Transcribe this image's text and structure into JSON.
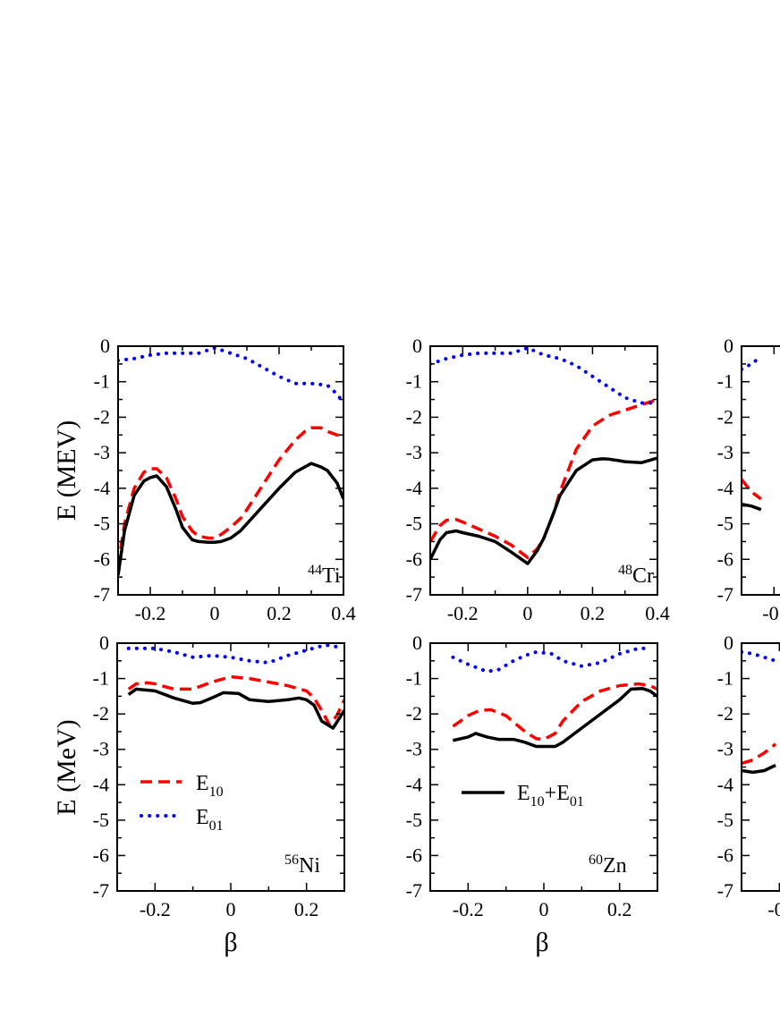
{
  "chart_data": [
    {
      "type": "line",
      "nucleus": {
        "mass": "44",
        "symbol": "Ti"
      },
      "ylabel": "E (MEV)",
      "xlabel": "",
      "xlim": [
        -0.3,
        0.4
      ],
      "ylim": [
        -7,
        0
      ],
      "xticks": [
        "-0.2",
        "0",
        "0.2",
        "0.4"
      ],
      "yticks": [
        "0",
        "-1",
        "-2",
        "-3",
        "-4",
        "-5",
        "-6",
        "-7"
      ],
      "series": [
        {
          "name": "E10",
          "color": "#ff0000",
          "style": "dashed",
          "x": [
            -0.3,
            -0.28,
            -0.25,
            -0.22,
            -0.2,
            -0.18,
            -0.15,
            -0.12,
            -0.1,
            -0.07,
            -0.05,
            -0.02,
            0,
            0.02,
            0.05,
            0.08,
            0.1,
            0.15,
            0.2,
            0.25,
            0.28,
            0.3,
            0.33,
            0.35,
            0.38,
            0.4
          ],
          "y": [
            -6.2,
            -5.0,
            -4.0,
            -3.55,
            -3.45,
            -3.45,
            -3.7,
            -4.3,
            -4.8,
            -5.2,
            -5.35,
            -5.4,
            -5.4,
            -5.3,
            -5.1,
            -4.85,
            -4.6,
            -3.9,
            -3.2,
            -2.65,
            -2.4,
            -2.3,
            -2.3,
            -2.4,
            -2.5,
            -2.55
          ]
        },
        {
          "name": "E01",
          "color": "#0000ff",
          "style": "dotted",
          "x": [
            -0.3,
            -0.25,
            -0.2,
            -0.15,
            -0.1,
            -0.05,
            0,
            0.05,
            0.1,
            0.15,
            0.2,
            0.25,
            0.3,
            0.35,
            0.38,
            0.4
          ],
          "y": [
            -0.4,
            -0.35,
            -0.25,
            -0.2,
            -0.2,
            -0.2,
            -0.05,
            -0.2,
            -0.35,
            -0.6,
            -0.85,
            -1.05,
            -1.05,
            -1.1,
            -1.35,
            -1.6
          ]
        },
        {
          "name": "E10+E01",
          "color": "#000000",
          "style": "solid",
          "x": [
            -0.3,
            -0.28,
            -0.25,
            -0.22,
            -0.2,
            -0.18,
            -0.15,
            -0.12,
            -0.1,
            -0.07,
            -0.05,
            -0.02,
            0,
            0.02,
            0.05,
            0.08,
            0.1,
            0.15,
            0.2,
            0.25,
            0.28,
            0.3,
            0.33,
            0.35,
            0.38,
            0.4
          ],
          "y": [
            -6.45,
            -5.2,
            -4.2,
            -3.8,
            -3.7,
            -3.65,
            -3.95,
            -4.6,
            -5.1,
            -5.45,
            -5.5,
            -5.52,
            -5.52,
            -5.5,
            -5.4,
            -5.2,
            -5.0,
            -4.5,
            -4.0,
            -3.55,
            -3.4,
            -3.3,
            -3.4,
            -3.5,
            -3.85,
            -4.3
          ]
        }
      ]
    },
    {
      "type": "line",
      "nucleus": {
        "mass": "48",
        "symbol": "Cr"
      },
      "ylabel": "",
      "xlabel": "",
      "xlim": [
        -0.3,
        0.4
      ],
      "ylim": [
        -7,
        0
      ],
      "xticks": [
        "-0.2",
        "0",
        "0.2",
        "0.4"
      ],
      "yticks": [
        "0",
        "-1",
        "-2",
        "-3",
        "-4",
        "-5",
        "-6",
        "-7"
      ],
      "series": [
        {
          "name": "E10",
          "color": "#ff0000",
          "style": "dashed",
          "x": [
            -0.3,
            -0.27,
            -0.25,
            -0.22,
            -0.2,
            -0.15,
            -0.1,
            -0.05,
            0,
            0.03,
            0.05,
            0.08,
            0.1,
            0.15,
            0.2,
            0.25,
            0.3,
            0.35,
            0.4
          ],
          "y": [
            -5.5,
            -5.05,
            -4.9,
            -4.88,
            -4.95,
            -5.15,
            -5.35,
            -5.6,
            -5.95,
            -5.7,
            -5.4,
            -4.7,
            -4.1,
            -2.9,
            -2.25,
            -1.95,
            -1.8,
            -1.65,
            -1.5
          ]
        },
        {
          "name": "E01",
          "color": "#0000ff",
          "style": "dotted",
          "x": [
            -0.3,
            -0.25,
            -0.2,
            -0.15,
            -0.1,
            -0.05,
            0,
            0.05,
            0.1,
            0.15,
            0.2,
            0.25,
            0.3,
            0.35,
            0.4
          ],
          "y": [
            -0.5,
            -0.35,
            -0.25,
            -0.2,
            -0.2,
            -0.2,
            -0.05,
            -0.25,
            -0.35,
            -0.55,
            -0.85,
            -1.15,
            -1.45,
            -1.6,
            -1.6
          ]
        },
        {
          "name": "E10+E01",
          "color": "#000000",
          "style": "solid",
          "x": [
            -0.3,
            -0.27,
            -0.25,
            -0.22,
            -0.2,
            -0.15,
            -0.1,
            -0.05,
            0,
            0.03,
            0.05,
            0.08,
            0.1,
            0.15,
            0.2,
            0.23,
            0.25,
            0.28,
            0.3,
            0.35,
            0.4
          ],
          "y": [
            -6.0,
            -5.45,
            -5.25,
            -5.2,
            -5.25,
            -5.35,
            -5.5,
            -5.8,
            -6.12,
            -5.75,
            -5.4,
            -4.7,
            -4.2,
            -3.5,
            -3.2,
            -3.17,
            -3.18,
            -3.22,
            -3.25,
            -3.28,
            -3.15
          ]
        }
      ]
    },
    {
      "type": "line",
      "nucleus": {
        "mass": "56",
        "symbol": "Ni"
      },
      "ylabel": "E (MeV)",
      "xlabel": "β",
      "xlim": [
        -0.3,
        0.3
      ],
      "ylim": [
        -7,
        0
      ],
      "xticks": [
        "-0.2",
        "0",
        "0.2"
      ],
      "yticks": [
        "0",
        "-1",
        "-2",
        "-3",
        "-4",
        "-5",
        "-6",
        "-7"
      ],
      "series": [
        {
          "name": "E10",
          "color": "#ff0000",
          "style": "dashed",
          "x": [
            -0.27,
            -0.25,
            -0.22,
            -0.2,
            -0.15,
            -0.1,
            -0.05,
            0,
            0.05,
            0.1,
            0.15,
            0.2,
            0.22,
            0.24,
            0.26,
            0.28,
            0.3
          ],
          "y": [
            -1.3,
            -1.15,
            -1.12,
            -1.15,
            -1.3,
            -1.3,
            -1.1,
            -0.95,
            -1.0,
            -1.1,
            -1.2,
            -1.35,
            -1.55,
            -1.9,
            -2.3,
            -2.05,
            -1.6
          ]
        },
        {
          "name": "E01",
          "color": "#0000ff",
          "style": "dotted",
          "x": [
            -0.27,
            -0.2,
            -0.15,
            -0.1,
            -0.05,
            0,
            0.05,
            0.1,
            0.15,
            0.2,
            0.25,
            0.28
          ],
          "y": [
            -0.15,
            -0.15,
            -0.25,
            -0.4,
            -0.35,
            -0.4,
            -0.5,
            -0.55,
            -0.35,
            -0.2,
            -0.05,
            -0.1
          ]
        },
        {
          "name": "E10+E01",
          "color": "#000000",
          "style": "solid",
          "x": [
            -0.27,
            -0.25,
            -0.2,
            -0.15,
            -0.1,
            -0.08,
            -0.05,
            -0.02,
            0.02,
            0.05,
            0.1,
            0.15,
            0.18,
            0.2,
            0.22,
            0.24,
            0.27,
            0.3
          ],
          "y": [
            -1.45,
            -1.3,
            -1.35,
            -1.55,
            -1.7,
            -1.68,
            -1.55,
            -1.4,
            -1.42,
            -1.6,
            -1.65,
            -1.6,
            -1.55,
            -1.6,
            -1.75,
            -2.2,
            -2.4,
            -1.9
          ]
        }
      ]
    },
    {
      "type": "line",
      "nucleus": {
        "mass": "60",
        "symbol": "Zn"
      },
      "ylabel": "",
      "xlabel": "β",
      "xlim": [
        -0.3,
        0.3
      ],
      "ylim": [
        -7,
        0
      ],
      "xticks": [
        "-0.2",
        "0",
        "0.2"
      ],
      "yticks": [
        "0",
        "-1",
        "-2",
        "-3",
        "-4",
        "-5",
        "-6",
        "-7"
      ],
      "series": [
        {
          "name": "E10",
          "color": "#ff0000",
          "style": "dashed",
          "x": [
            -0.24,
            -0.2,
            -0.17,
            -0.14,
            -0.1,
            -0.05,
            -0.02,
            0.0,
            0.03,
            0.05,
            0.1,
            0.15,
            0.2,
            0.25,
            0.28,
            0.3
          ],
          "y": [
            -2.35,
            -2.05,
            -1.9,
            -1.88,
            -2.05,
            -2.5,
            -2.7,
            -2.72,
            -2.55,
            -2.2,
            -1.65,
            -1.35,
            -1.2,
            -1.15,
            -1.2,
            -1.3
          ]
        },
        {
          "name": "E01",
          "color": "#0000ff",
          "style": "dotted",
          "x": [
            -0.24,
            -0.2,
            -0.15,
            -0.12,
            -0.08,
            -0.05,
            -0.02,
            0.02,
            0.05,
            0.1,
            0.15,
            0.2,
            0.25,
            0.28
          ],
          "y": [
            -0.4,
            -0.6,
            -0.8,
            -0.75,
            -0.5,
            -0.35,
            -0.25,
            -0.3,
            -0.5,
            -0.65,
            -0.55,
            -0.3,
            -0.15,
            -0.15
          ]
        },
        {
          "name": "E10+E01",
          "color": "#000000",
          "style": "solid",
          "x": [
            -0.24,
            -0.2,
            -0.18,
            -0.15,
            -0.12,
            -0.08,
            -0.05,
            -0.02,
            0.0,
            0.03,
            0.05,
            0.1,
            0.15,
            0.2,
            0.23,
            0.26,
            0.28,
            0.3
          ],
          "y": [
            -2.75,
            -2.65,
            -2.55,
            -2.65,
            -2.72,
            -2.72,
            -2.8,
            -2.92,
            -2.92,
            -2.92,
            -2.8,
            -2.4,
            -2.0,
            -1.6,
            -1.3,
            -1.28,
            -1.35,
            -1.5
          ]
        }
      ]
    }
  ],
  "legend": {
    "e10": {
      "main": "E",
      "sub": "10"
    },
    "e01": {
      "main": "E",
      "sub": "01"
    },
    "sum": {
      "main1": "E",
      "sub1": "10",
      "plus": "+E",
      "sub2": "01"
    }
  },
  "cut_panels": [
    {
      "xlim": [
        -0.3,
        0.4
      ],
      "ylim": [
        -7,
        0
      ],
      "xticks": [
        "-0."
      ],
      "yticks": [
        "0",
        "-1",
        "-2",
        "-3",
        "-4",
        "-5",
        "-6",
        "-7"
      ],
      "series": [
        {
          "name": "E10",
          "color": "#ff0000",
          "style": "dashed",
          "x": [
            -0.3,
            -0.27,
            -0.24
          ],
          "y": [
            -3.75,
            -4.1,
            -4.3
          ]
        },
        {
          "name": "E01",
          "color": "#0000ff",
          "style": "dotted",
          "x": [
            -0.3,
            -0.27,
            -0.24
          ],
          "y": [
            -0.65,
            -0.5,
            -0.3
          ]
        },
        {
          "name": "E10+E01",
          "color": "#000000",
          "style": "solid",
          "x": [
            -0.3,
            -0.27,
            -0.24
          ],
          "y": [
            -4.45,
            -4.5,
            -4.6
          ]
        }
      ]
    },
    {
      "xlim": [
        -0.3,
        0.3
      ],
      "ylim": [
        -7,
        0
      ],
      "xticks": [
        "-0"
      ],
      "yticks": [
        "0",
        "-1",
        "-2",
        "-3",
        "-4",
        "-5",
        "-6",
        "-7"
      ],
      "series": [
        {
          "name": "E10",
          "color": "#ff0000",
          "style": "dashed",
          "x": [
            -0.3,
            -0.27,
            -0.24,
            -0.21
          ],
          "y": [
            -3.4,
            -3.3,
            -3.1,
            -2.85
          ]
        },
        {
          "name": "E01",
          "color": "#0000ff",
          "style": "dotted",
          "x": [
            -0.3,
            -0.27,
            -0.24,
            -0.21
          ],
          "y": [
            -0.25,
            -0.3,
            -0.4,
            -0.5
          ]
        },
        {
          "name": "E10+E01",
          "color": "#000000",
          "style": "solid",
          "x": [
            -0.3,
            -0.27,
            -0.24,
            -0.21
          ],
          "y": [
            -3.6,
            -3.65,
            -3.6,
            -3.45
          ]
        }
      ]
    }
  ]
}
